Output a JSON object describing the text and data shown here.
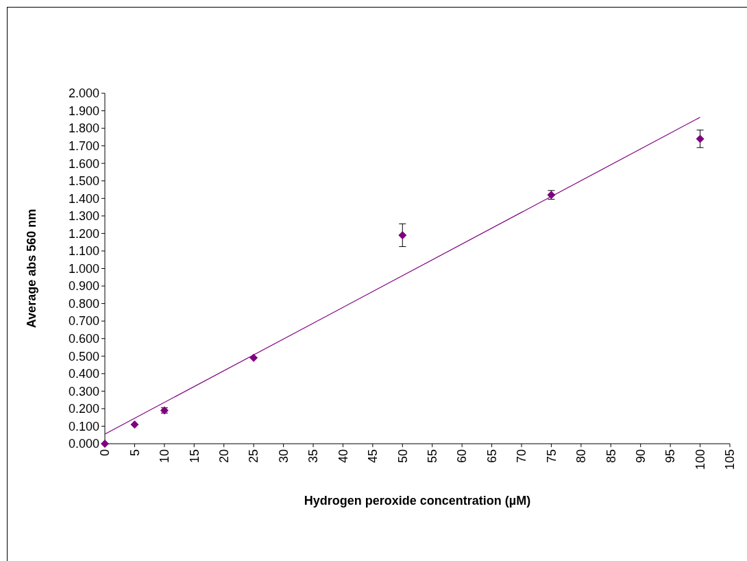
{
  "chart_data": {
    "type": "scatter",
    "xlabel": "Hydrogen peroxide concentration (µM)",
    "ylabel": "Average abs 560 nm",
    "grid": false,
    "xlim": [
      0,
      105
    ],
    "xticks": [
      0,
      5,
      10,
      15,
      20,
      25,
      30,
      35,
      40,
      45,
      50,
      55,
      60,
      65,
      70,
      75,
      80,
      85,
      90,
      95,
      100,
      105
    ],
    "ylim": [
      0,
      2
    ],
    "yticks": [
      {
        "value": 0,
        "label": "0.000"
      },
      {
        "value": 0.1,
        "label": "0.100"
      },
      {
        "value": 0.2,
        "label": "0.200"
      },
      {
        "value": 0.3,
        "label": "0.300"
      },
      {
        "value": 0.4,
        "label": "0.400"
      },
      {
        "value": 0.5,
        "label": "0.500"
      },
      {
        "value": 0.6,
        "label": "0.600"
      },
      {
        "value": 0.7,
        "label": "0.700"
      },
      {
        "value": 0.8,
        "label": "0.800"
      },
      {
        "value": 0.9,
        "label": "0.900"
      },
      {
        "value": 1,
        "label": "1.000"
      },
      {
        "value": 1.1,
        "label": "1.100"
      },
      {
        "value": 1.2,
        "label": "1.200"
      },
      {
        "value": 1.3,
        "label": "1.300"
      },
      {
        "value": 1.4,
        "label": "1.400"
      },
      {
        "value": 1.5,
        "label": "1.500"
      },
      {
        "value": 1.6,
        "label": "1.600"
      },
      {
        "value": 1.7,
        "label": "1.700"
      },
      {
        "value": 1.8,
        "label": "1.800"
      },
      {
        "value": 1.9,
        "label": "1.900"
      },
      {
        "value": 2,
        "label": "2.000"
      }
    ],
    "series": [
      {
        "color": "#7f007f",
        "marker": "diamond",
        "x": [
          0,
          5,
          10,
          25,
          50,
          75,
          100
        ],
        "values": [
          0,
          0.11,
          0.19,
          0.49,
          1.19,
          1.42,
          1.74
        ],
        "errors": [
          null,
          null,
          0.015,
          null,
          0.065,
          0.025,
          0.05
        ]
      },
      {
        "type": "line",
        "color": "#800080",
        "x": [
          0,
          100
        ],
        "values": [
          0.055,
          1.863
        ]
      }
    ]
  }
}
